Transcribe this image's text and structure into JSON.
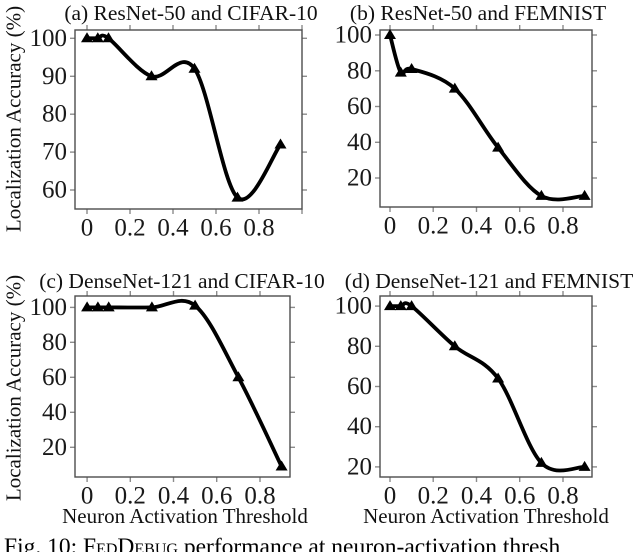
{
  "figure": {
    "y_axis_label": "Localization Accuracy (%)",
    "x_axis_label": "Neuron Activation Threshold",
    "caption": {
      "prefix": "Fig. 10: ",
      "brand": "FedDebug",
      "suffix": " performance at neuron-activation thresh"
    }
  },
  "chart_data": [
    {
      "id": "a",
      "type": "line",
      "title": "(a) ResNet-50 and CIFAR-10",
      "xlabel": "",
      "ylabel": "Localization Accuracy (%)",
      "x": [
        0,
        0.05,
        0.1,
        0.3,
        0.5,
        0.7,
        0.9
      ],
      "y": [
        100,
        100,
        100,
        90,
        92,
        58,
        72
      ],
      "marker": "filled-triangle",
      "smooth": true,
      "legend": "none",
      "grid": false,
      "xlim": [
        -0.056,
        1.0
      ],
      "ylim": [
        55,
        102.2
      ],
      "x_ticks": [
        0,
        0.2,
        0.4,
        0.6,
        0.8,
        1.0
      ],
      "x_tick_labels": [
        "0",
        "0.2",
        "0.4",
        "0.6",
        "0.8",
        ""
      ],
      "y_ticks": [
        60,
        70,
        80,
        90,
        100
      ],
      "y_tick_labels": [
        "60",
        "70",
        "80",
        "90",
        "100"
      ]
    },
    {
      "id": "b",
      "type": "line",
      "title": "(b) ResNet-50 and FEMNIST",
      "xlabel": "",
      "ylabel": "Localization Accuracy (%)",
      "x": [
        0,
        0.05,
        0.1,
        0.3,
        0.5,
        0.7,
        0.9
      ],
      "y": [
        100,
        79,
        81,
        70,
        37,
        10,
        10
      ],
      "marker": "filled-triangle",
      "smooth": true,
      "legend": "none",
      "grid": false,
      "xlim": [
        -0.046,
        0.934
      ],
      "ylim": [
        3.8,
        102.8
      ],
      "x_ticks": [
        0,
        0.2,
        0.4,
        0.6,
        0.8
      ],
      "x_tick_labels": [
        "0",
        "0.2",
        "0.4",
        "0.6",
        "0.8"
      ],
      "y_ticks": [
        20,
        40,
        60,
        80,
        100
      ],
      "y_tick_labels": [
        "20",
        "40",
        "60",
        "80",
        "100"
      ]
    },
    {
      "id": "c",
      "type": "line",
      "title": "(c) DenseNet-121 and CIFAR-10",
      "xlabel": "Neuron Activation Threshold",
      "ylabel": "Localization Accuracy (%)",
      "x": [
        0,
        0.05,
        0.1,
        0.3,
        0.5,
        0.7,
        0.9
      ],
      "y": [
        100,
        100,
        100,
        100,
        101,
        60,
        9
      ],
      "marker": "filled-triangle",
      "smooth": true,
      "legend": "none",
      "grid": false,
      "xlim": [
        -0.056,
        0.939
      ],
      "ylim": [
        3,
        106.5
      ],
      "x_ticks": [
        0,
        0.2,
        0.4,
        0.6,
        0.8
      ],
      "x_tick_labels": [
        "0",
        "0.2",
        "0.4",
        "0.6",
        "0.8"
      ],
      "y_ticks": [
        20,
        40,
        60,
        80,
        100
      ],
      "y_tick_labels": [
        "20",
        "40",
        "60",
        "80",
        "100"
      ]
    },
    {
      "id": "d",
      "type": "line",
      "title": "(d) DenseNet-121 and FEMNIST",
      "xlabel": "Neuron Activation Threshold",
      "ylabel": "Localization Accuracy (%)",
      "x": [
        0,
        0.05,
        0.1,
        0.3,
        0.5,
        0.7,
        0.9
      ],
      "y": [
        100,
        100,
        100,
        80,
        64,
        22,
        20
      ],
      "marker": "filled-triangle",
      "smooth": true,
      "legend": "none",
      "grid": false,
      "xlim": [
        -0.046,
        0.934
      ],
      "ylim": [
        15,
        105
      ],
      "x_ticks": [
        0,
        0.2,
        0.4,
        0.6,
        0.8
      ],
      "x_tick_labels": [
        "0",
        "0.2",
        "0.4",
        "0.6",
        "0.8"
      ],
      "y_ticks": [
        20,
        40,
        60,
        80,
        100
      ],
      "y_tick_labels": [
        "20",
        "40",
        "60",
        "80",
        "100"
      ]
    }
  ]
}
